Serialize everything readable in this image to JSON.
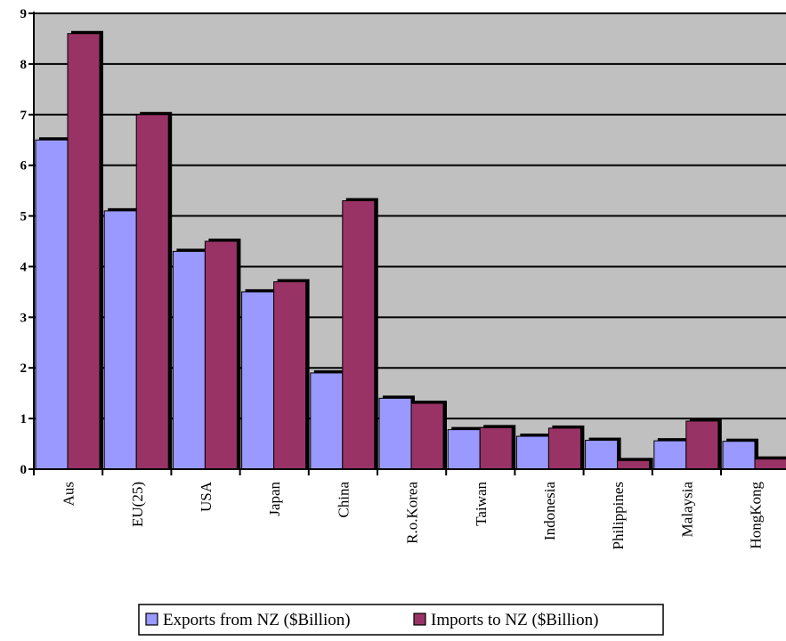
{
  "chart_data": {
    "type": "bar",
    "categories": [
      "Aus",
      "EU(25)",
      "USA",
      "Japan",
      "China",
      "R.o.Korea",
      "Taiwan",
      "Indonesia",
      "Philippines",
      "Malaysia",
      "HongKong"
    ],
    "series": [
      {
        "name": "Exports from NZ ($Billion)",
        "color": "#9999ff",
        "values": [
          6.5,
          5.1,
          4.3,
          3.5,
          1.9,
          1.4,
          0.78,
          0.65,
          0.57,
          0.56,
          0.55
        ]
      },
      {
        "name": "Imports to NZ ($Billion)",
        "color": "#993366",
        "values": [
          8.6,
          7.0,
          4.5,
          3.7,
          5.3,
          1.3,
          0.82,
          0.81,
          0.17,
          0.95,
          0.2
        ]
      }
    ],
    "ylim": [
      0,
      9
    ],
    "yticks": [
      "0",
      "1",
      "2",
      "3",
      "4",
      "5",
      "6",
      "7",
      "8",
      "9"
    ],
    "grid": true,
    "plot_background": "#c0c0c0",
    "legend_position": "bottom",
    "title": "",
    "xlabel": "",
    "ylabel": ""
  }
}
